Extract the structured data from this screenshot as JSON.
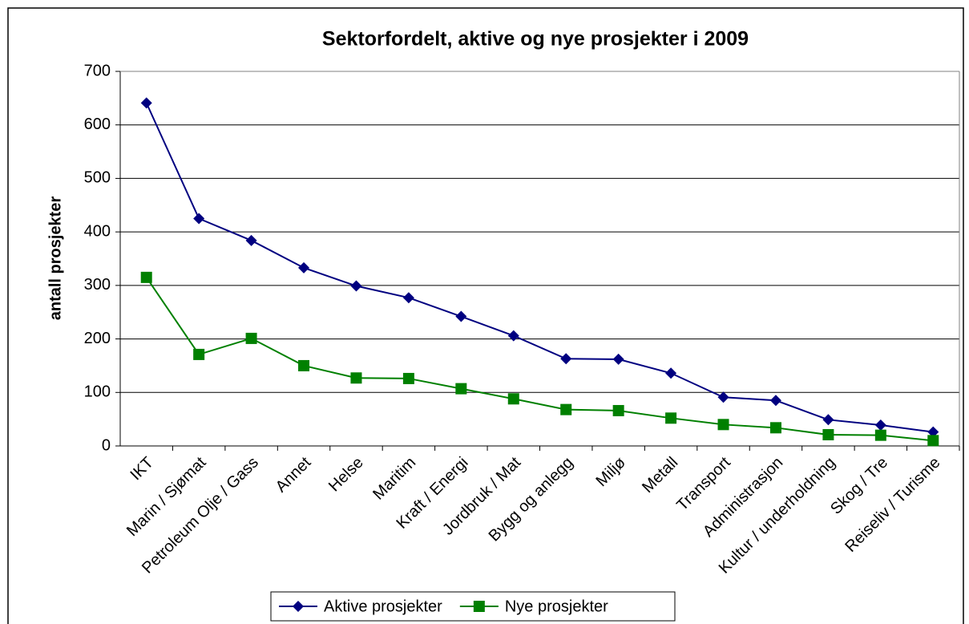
{
  "chart_data": {
    "type": "line",
    "title": "Sektorfordelt, aktive og nye prosjekter i 2009",
    "y_label": "antall prosjekter",
    "categories": [
      "IKT",
      "Marin / Sjømat",
      "Petroleum Olje / Gass",
      "Annet",
      "Helse",
      "Maritim",
      "Kraft / Energi",
      "Jordbruk / Mat",
      "Bygg og anlegg",
      "Miljø",
      "Metall",
      "Transport",
      "Administrasjon",
      "Kultur / underholdning",
      "Skog / Tre",
      "Reiseliv / Turisme"
    ],
    "series": [
      {
        "name": "Aktive prosjekter",
        "color": "#000080",
        "marker": "diamond",
        "values": [
          641,
          425,
          384,
          333,
          299,
          277,
          242,
          206,
          163,
          162,
          136,
          91,
          85,
          49,
          39,
          26
        ]
      },
      {
        "name": "Nye prosjekter",
        "color": "#008000",
        "marker": "square",
        "values": [
          315,
          171,
          201,
          150,
          127,
          126,
          107,
          88,
          68,
          66,
          52,
          40,
          34,
          21,
          20,
          10
        ]
      }
    ],
    "ylim": [
      0,
      700
    ],
    "yticks": [
      0,
      100,
      200,
      300,
      400,
      500,
      600,
      700
    ],
    "grid": true,
    "legend": "bottom"
  }
}
